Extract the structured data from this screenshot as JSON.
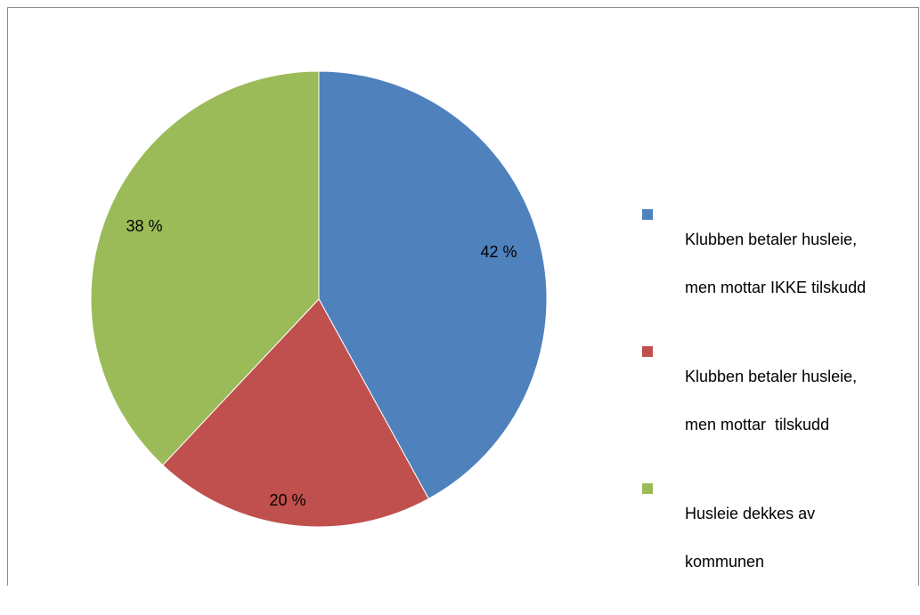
{
  "chart_data": {
    "type": "pie",
    "title": "",
    "categories": [
      "Klubben betaler husleie, men mottar IKKE tilskudd",
      "Klubben betaler husleie, men mottar  tilskudd",
      "Husleie dekkes av kommunen"
    ],
    "values": [
      42,
      20,
      38
    ],
    "data_labels": [
      "42 %",
      "20 %",
      "38 %"
    ],
    "colors": [
      "#4f81bd",
      "#c0504d",
      "#9bbb59"
    ],
    "legend_position": "right",
    "legend_lines": [
      [
        "Klubben betaler husleie,",
        "men mottar IKKE tilskudd"
      ],
      [
        "Klubben betaler husleie,",
        "men mottar  tilskudd"
      ],
      [
        "Husleie dekkes av",
        "kommunen"
      ]
    ]
  }
}
